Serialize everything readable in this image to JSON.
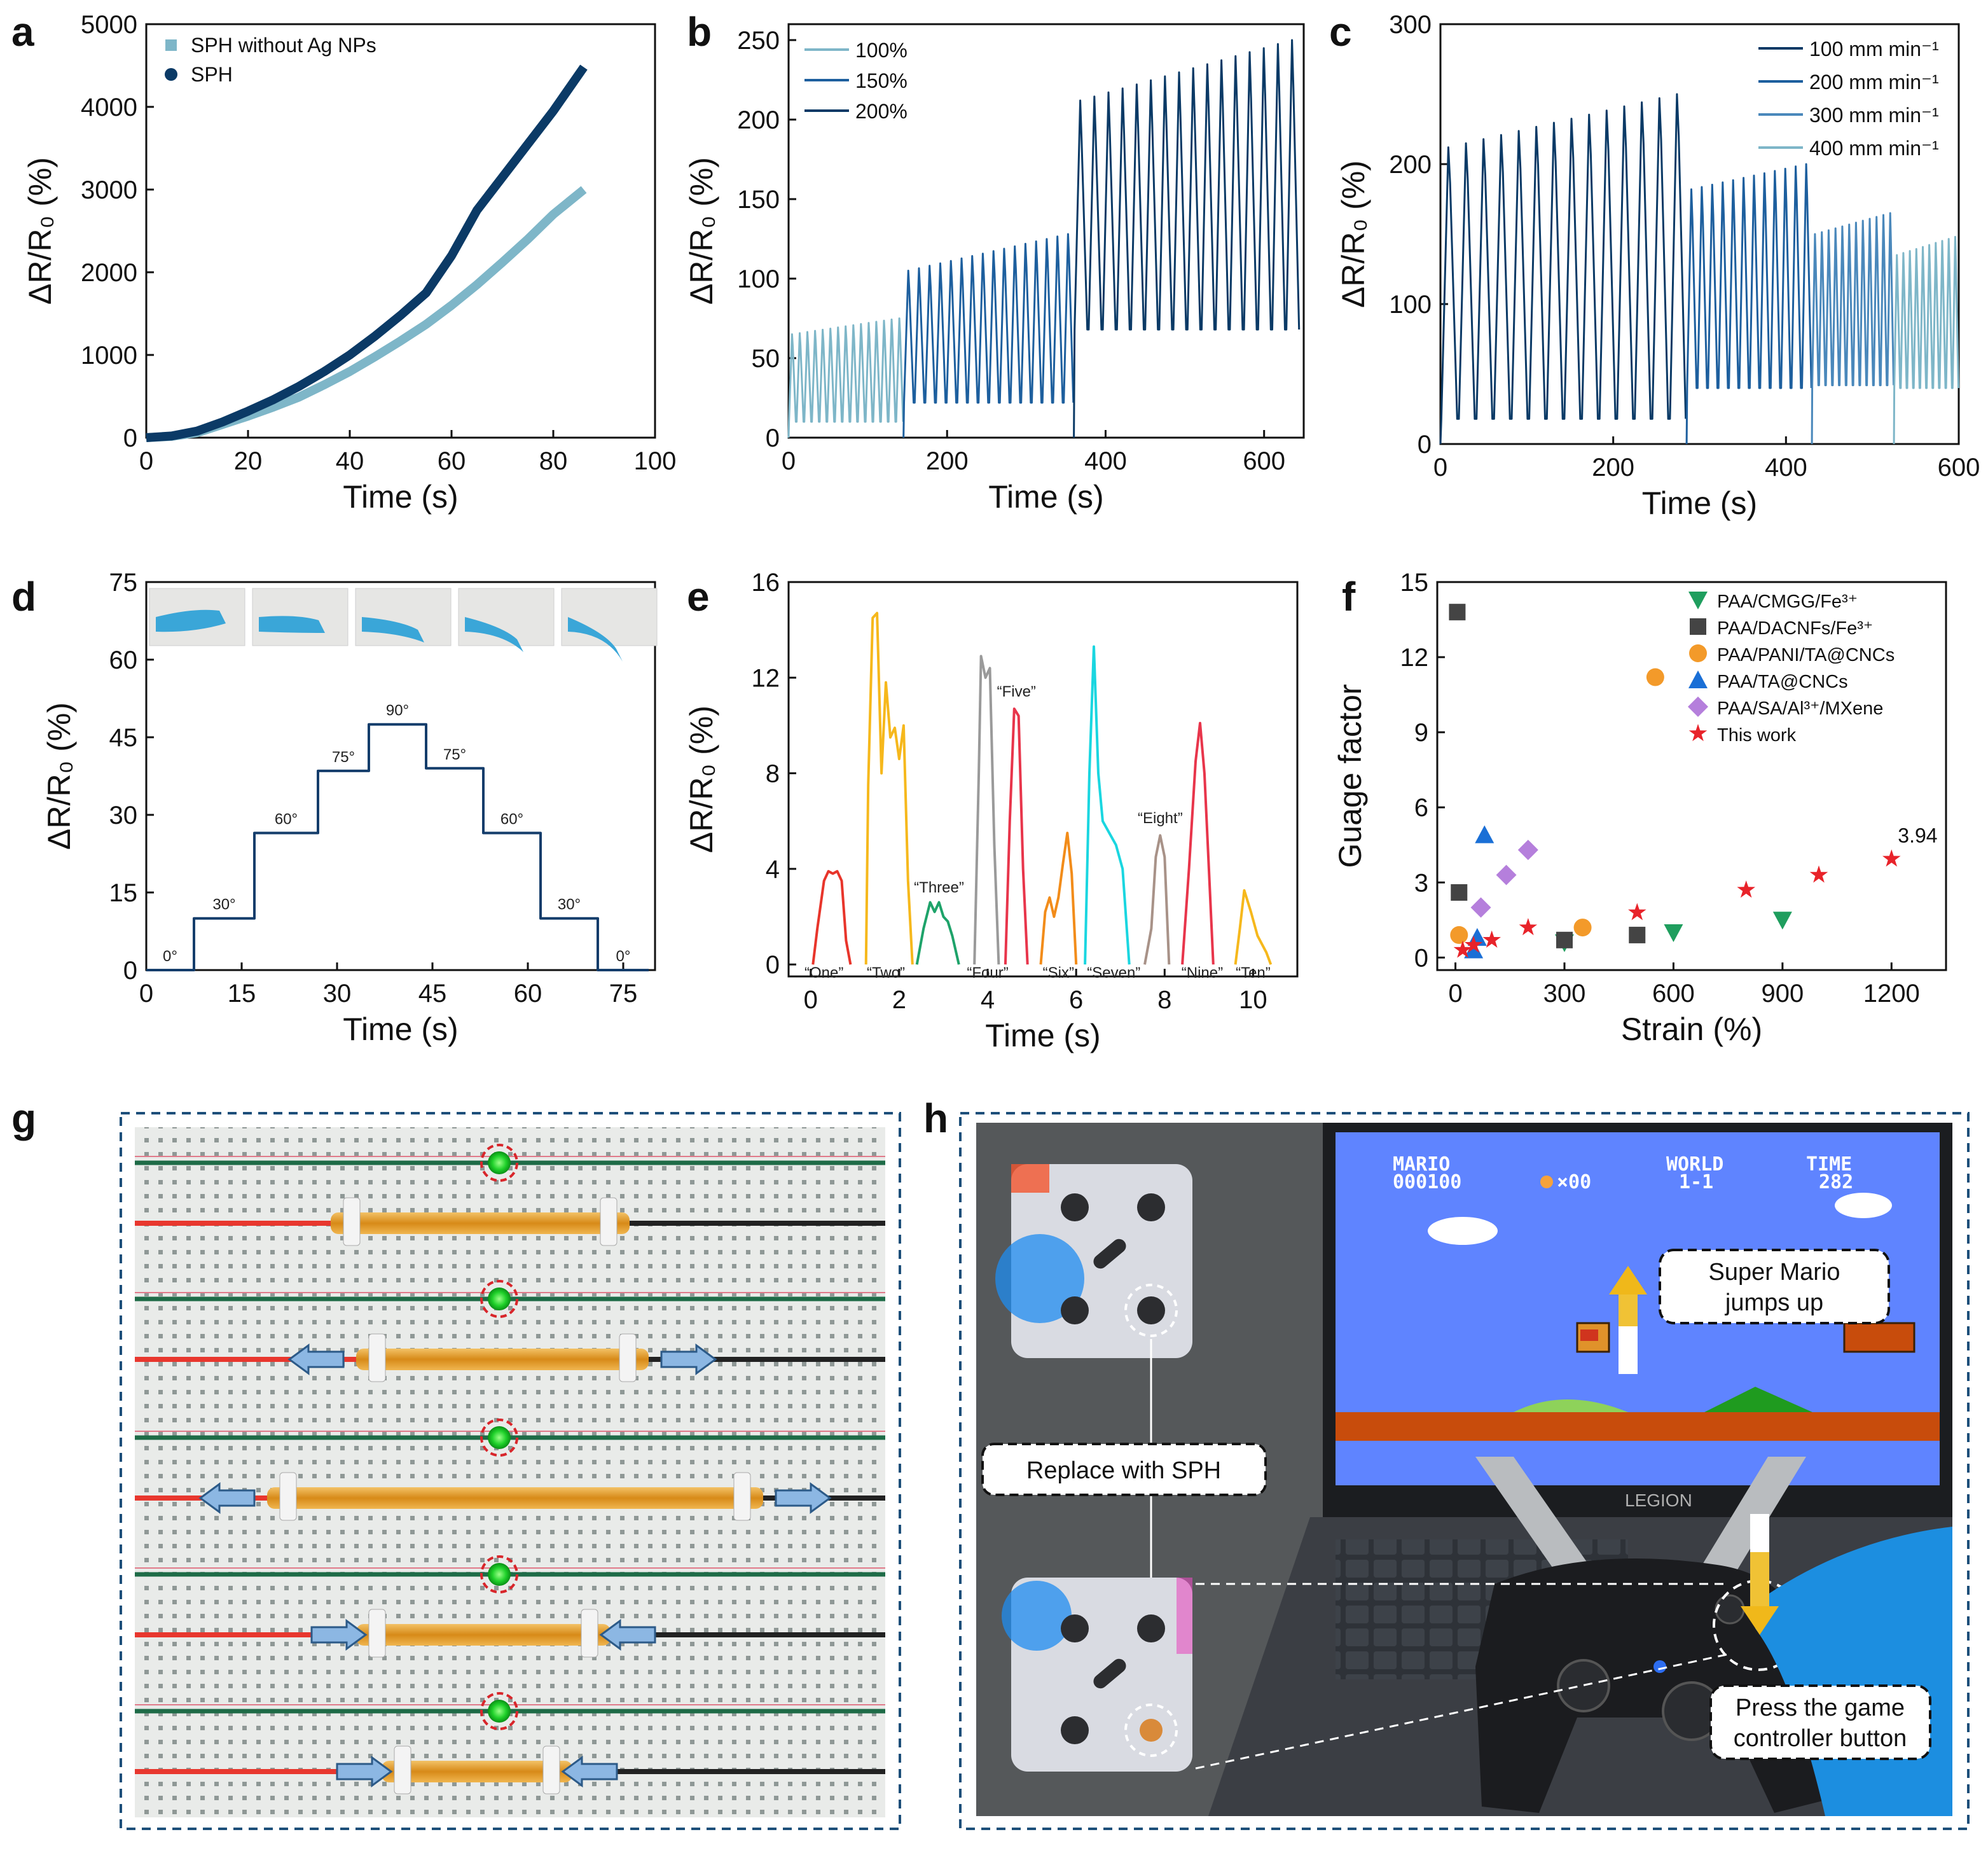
{
  "colors": {
    "dark_blue": "#0b3a66",
    "mid_blue": "#1d5f9e",
    "light_blue": "#7eb6c8",
    "navy": "#143d6b"
  },
  "panels": [
    "a",
    "b",
    "c",
    "d",
    "e",
    "f",
    "g",
    "h"
  ],
  "chart_data": [
    {
      "id": "a",
      "type": "line",
      "xlabel": "Time (s)",
      "ylabel": "ΔR/R₀ (%)",
      "xlim": [
        0,
        100
      ],
      "ylim": [
        0,
        5000
      ],
      "xticks": [
        "0",
        "20",
        "40",
        "60",
        "80",
        "100"
      ],
      "yticks": [
        "0",
        "1000",
        "2000",
        "3000",
        "4000",
        "5000"
      ],
      "series": [
        {
          "name": "SPH without Ag NPs",
          "color": "#7eb6c8",
          "x": [
            0,
            5,
            10,
            15,
            20,
            25,
            30,
            35,
            40,
            45,
            50,
            55,
            60,
            65,
            70,
            75,
            80,
            86
          ],
          "y": [
            0,
            15,
            60,
            160,
            260,
            370,
            490,
            640,
            800,
            980,
            1170,
            1370,
            1600,
            1850,
            2120,
            2400,
            2700,
            3000
          ]
        },
        {
          "name": "SPH",
          "color": "#0b3a66",
          "x": [
            0,
            5,
            10,
            15,
            20,
            25,
            30,
            35,
            40,
            45,
            50,
            55,
            60,
            65,
            70,
            75,
            80,
            86
          ],
          "y": [
            0,
            20,
            80,
            190,
            320,
            460,
            620,
            800,
            1000,
            1230,
            1480,
            1750,
            2200,
            2750,
            3150,
            3550,
            3950,
            4480
          ]
        }
      ]
    },
    {
      "id": "b",
      "type": "line",
      "xlabel": "Time (s)",
      "ylabel": "ΔR/R₀ (%)",
      "xlim": [
        0,
        650
      ],
      "ylim": [
        0,
        260
      ],
      "xticks": [
        "0",
        "200",
        "400",
        "600"
      ],
      "yticks": [
        "0",
        "50",
        "100",
        "150",
        "200",
        "250"
      ],
      "series": [
        {
          "name": "100%",
          "color": "#7eb6c8",
          "t_start": 0,
          "t_end": 145,
          "cycles": 15,
          "base": 10,
          "peak_start": 65,
          "peak_end": 75
        },
        {
          "name": "150%",
          "color": "#1d5f9e",
          "t_start": 145,
          "t_end": 360,
          "cycles": 16,
          "base": 22,
          "peak_start": 105,
          "peak_end": 128
        },
        {
          "name": "200%",
          "color": "#0b3a66",
          "t_start": 360,
          "t_end": 645,
          "cycles": 16,
          "base": 68,
          "peak_start": 212,
          "peak_end": 250
        }
      ]
    },
    {
      "id": "c",
      "type": "line",
      "xlabel": "Time (s)",
      "ylabel": "ΔR/R₀ (%)",
      "xlim": [
        0,
        600
      ],
      "ylim": [
        0,
        300
      ],
      "xticks": [
        "0",
        "200",
        "400",
        "600"
      ],
      "yticks": [
        "0",
        "100",
        "200",
        "300"
      ],
      "series": [
        {
          "name": "100 mm min⁻¹",
          "color": "#0b3a66",
          "t_start": 0,
          "t_end": 285,
          "cycles": 14,
          "base": 18,
          "peak_start": 212,
          "peak_end": 250
        },
        {
          "name": "200 mm min⁻¹",
          "color": "#1d5f9e",
          "t_start": 285,
          "t_end": 430,
          "cycles": 12,
          "base": 40,
          "peak_start": 182,
          "peak_end": 200
        },
        {
          "name": "300 mm min⁻¹",
          "color": "#4a88bb",
          "t_start": 430,
          "t_end": 525,
          "cycles": 12,
          "base": 42,
          "peak_start": 150,
          "peak_end": 165
        },
        {
          "name": "400 mm min⁻¹",
          "color": "#7eb6c8",
          "t_start": 525,
          "t_end": 600,
          "cycles": 10,
          "base": 40,
          "peak_start": 135,
          "peak_end": 148
        }
      ]
    },
    {
      "id": "d",
      "type": "line",
      "xlabel": "Time (s)",
      "ylabel": "ΔR/R₀ (%)",
      "xlim": [
        0,
        80
      ],
      "ylim": [
        0,
        75
      ],
      "xticks": [
        "0",
        "15",
        "30",
        "45",
        "60",
        "75"
      ],
      "yticks": [
        "0",
        "15",
        "30",
        "45",
        "60",
        "75"
      ],
      "steps": [
        {
          "t0": 0,
          "t1": 7.5,
          "y": 0,
          "label": "0°"
        },
        {
          "t0": 7.5,
          "t1": 17,
          "y": 10,
          "label": "30°"
        },
        {
          "t0": 17,
          "t1": 27,
          "y": 26.5,
          "label": "60°"
        },
        {
          "t0": 27,
          "t1": 35,
          "y": 38.5,
          "label": "75°"
        },
        {
          "t0": 35,
          "t1": 44,
          "y": 47.5,
          "label": "90°"
        },
        {
          "t0": 44,
          "t1": 53,
          "y": 39,
          "label": "75°"
        },
        {
          "t0": 53,
          "t1": 62,
          "y": 26.5,
          "label": "60°"
        },
        {
          "t0": 62,
          "t1": 71,
          "y": 10,
          "label": "30°"
        },
        {
          "t0": 71,
          "t1": 79,
          "y": 0,
          "label": "0°"
        }
      ],
      "color": "#143d6b"
    },
    {
      "id": "e",
      "type": "line",
      "xlabel": "Time (s)",
      "ylabel": "ΔR/R₀ (%)",
      "xlim": [
        -0.5,
        11
      ],
      "ylim": [
        -0.5,
        16
      ],
      "xticks": [
        "0",
        "2",
        "4",
        "6",
        "8",
        "10"
      ],
      "yticks": [
        "0",
        "4",
        "8",
        "12",
        "16"
      ],
      "words": [
        {
          "label": "“One”",
          "color": "#e8352b",
          "x": [
            0.05,
            0.15,
            0.3,
            0.4,
            0.5,
            0.6,
            0.7,
            0.8,
            0.9
          ],
          "y": [
            0,
            1.5,
            3.5,
            3.9,
            3.8,
            3.9,
            3.5,
            1.0,
            0
          ]
        },
        {
          "label": "“Two”",
          "color": "#f6b81c",
          "x": [
            1.25,
            1.3,
            1.4,
            1.5,
            1.6,
            1.7,
            1.8,
            1.9,
            2.0,
            2.1,
            2.2,
            2.3
          ],
          "y": [
            0,
            7.5,
            14.5,
            14.7,
            8.0,
            11.8,
            9.5,
            9.9,
            8.6,
            10.0,
            3.5,
            0
          ]
        },
        {
          "label": "“Three”",
          "color": "#1ea36a",
          "x": [
            2.4,
            2.55,
            2.7,
            2.8,
            2.9,
            3.0,
            3.1,
            3.2,
            3.35
          ],
          "y": [
            0,
            1.5,
            2.6,
            2.2,
            2.6,
            2.0,
            1.8,
            1.2,
            0
          ]
        },
        {
          "label": "“Four”",
          "color": "#9a9a9a",
          "x": [
            3.7,
            3.8,
            3.85,
            3.95,
            4.05,
            4.15,
            4.25
          ],
          "y": [
            0,
            8.0,
            12.9,
            12.0,
            12.4,
            5.0,
            0
          ]
        },
        {
          "label": "“Five”",
          "color": "#e8354b",
          "x": [
            4.4,
            4.5,
            4.6,
            4.7,
            4.8,
            4.9
          ],
          "y": [
            0,
            6.0,
            10.7,
            10.4,
            4.0,
            0
          ]
        },
        {
          "label": "“Six”",
          "color": "#f28c1a",
          "x": [
            5.2,
            5.3,
            5.4,
            5.5,
            5.6,
            5.7,
            5.8,
            5.9,
            6.0
          ],
          "y": [
            0,
            2.2,
            2.8,
            2.0,
            2.8,
            4.2,
            5.5,
            3.8,
            0
          ]
        },
        {
          "label": "“Seven”",
          "color": "#1ad6e0",
          "x": [
            6.2,
            6.3,
            6.4,
            6.5,
            6.6,
            6.75,
            6.9,
            7.05,
            7.2
          ],
          "y": [
            0,
            8.0,
            13.3,
            8.0,
            6.0,
            5.5,
            5.0,
            4.0,
            0
          ]
        },
        {
          "label": "“Eight”",
          "color": "#a89288",
          "x": [
            7.55,
            7.7,
            7.8,
            7.9,
            8.0,
            8.1
          ],
          "y": [
            0,
            1.5,
            4.5,
            5.4,
            4.5,
            0
          ]
        },
        {
          "label": "“Nine”",
          "color": "#e8354b",
          "x": [
            8.4,
            8.55,
            8.7,
            8.8,
            8.9,
            9.0,
            9.1
          ],
          "y": [
            0,
            4.0,
            8.5,
            10.1,
            8.0,
            4.0,
            0
          ]
        },
        {
          "label": "“Ten”",
          "color": "#f6b81c",
          "x": [
            9.6,
            9.7,
            9.8,
            9.95,
            10.1,
            10.3,
            10.4
          ],
          "y": [
            0,
            1.5,
            3.1,
            2.2,
            1.2,
            0.5,
            0
          ]
        }
      ]
    },
    {
      "id": "f",
      "type": "scatter",
      "xlabel": "Strain (%)",
      "ylabel": "Guage factor",
      "xlim": [
        -50,
        1350
      ],
      "ylim": [
        -0.5,
        15
      ],
      "xticks": [
        "0",
        "300",
        "600",
        "900",
        "1200"
      ],
      "yticks": [
        "0",
        "3",
        "6",
        "9",
        "12",
        "15"
      ],
      "annotation": "3.94",
      "series": [
        {
          "name": "PAA/CMGG/Fe³⁺",
          "marker": "tri-down",
          "color": "#1f9e5e",
          "x": [
            300,
            600,
            900
          ],
          "y": [
            0.6,
            1.0,
            1.5
          ]
        },
        {
          "name": "PAA/DACNFs/Fe³⁺",
          "marker": "square",
          "color": "#444444",
          "x": [
            5,
            10,
            300,
            500
          ],
          "y": [
            13.8,
            2.6,
            0.7,
            0.9
          ]
        },
        {
          "name": "PAA/PANI/TA@CNCs",
          "marker": "circle",
          "color": "#f39a2a",
          "x": [
            10,
            550,
            350
          ],
          "y": [
            0.9,
            11.2,
            1.2
          ]
        },
        {
          "name": "PAA/TA@CNCs",
          "marker": "tri-up",
          "color": "#1a6fd6",
          "x": [
            50,
            80,
            60
          ],
          "y": [
            0.3,
            4.9,
            0.8
          ]
        },
        {
          "name": "PAA/SA/Al³⁺/MXene",
          "marker": "diamond",
          "color": "#b57fdc",
          "x": [
            70,
            140,
            200
          ],
          "y": [
            2.0,
            3.3,
            4.3
          ]
        },
        {
          "name": "This work",
          "marker": "star",
          "color": "#e8232a",
          "x": [
            20,
            50,
            100,
            200,
            500,
            800,
            1000,
            1200
          ],
          "y": [
            0.3,
            0.5,
            0.7,
            1.2,
            1.8,
            2.7,
            3.3,
            3.94
          ]
        }
      ]
    }
  ],
  "panel_d": {
    "photo_count": 5
  },
  "panel_h": {
    "callout_replace": "Replace with SPH",
    "callout_jump_1": "Super Mario",
    "callout_jump_2": "jumps up",
    "callout_press_1": "Press the game",
    "callout_press_2": "controller button",
    "mario_hud_1": "MARIO",
    "mario_hud_2": "000100",
    "mario_coins": "×00",
    "world_1": "WORLD",
    "world_2": "1-1",
    "time_1": "TIME",
    "time_2": "282",
    "laptop_brand": "LEGION"
  }
}
